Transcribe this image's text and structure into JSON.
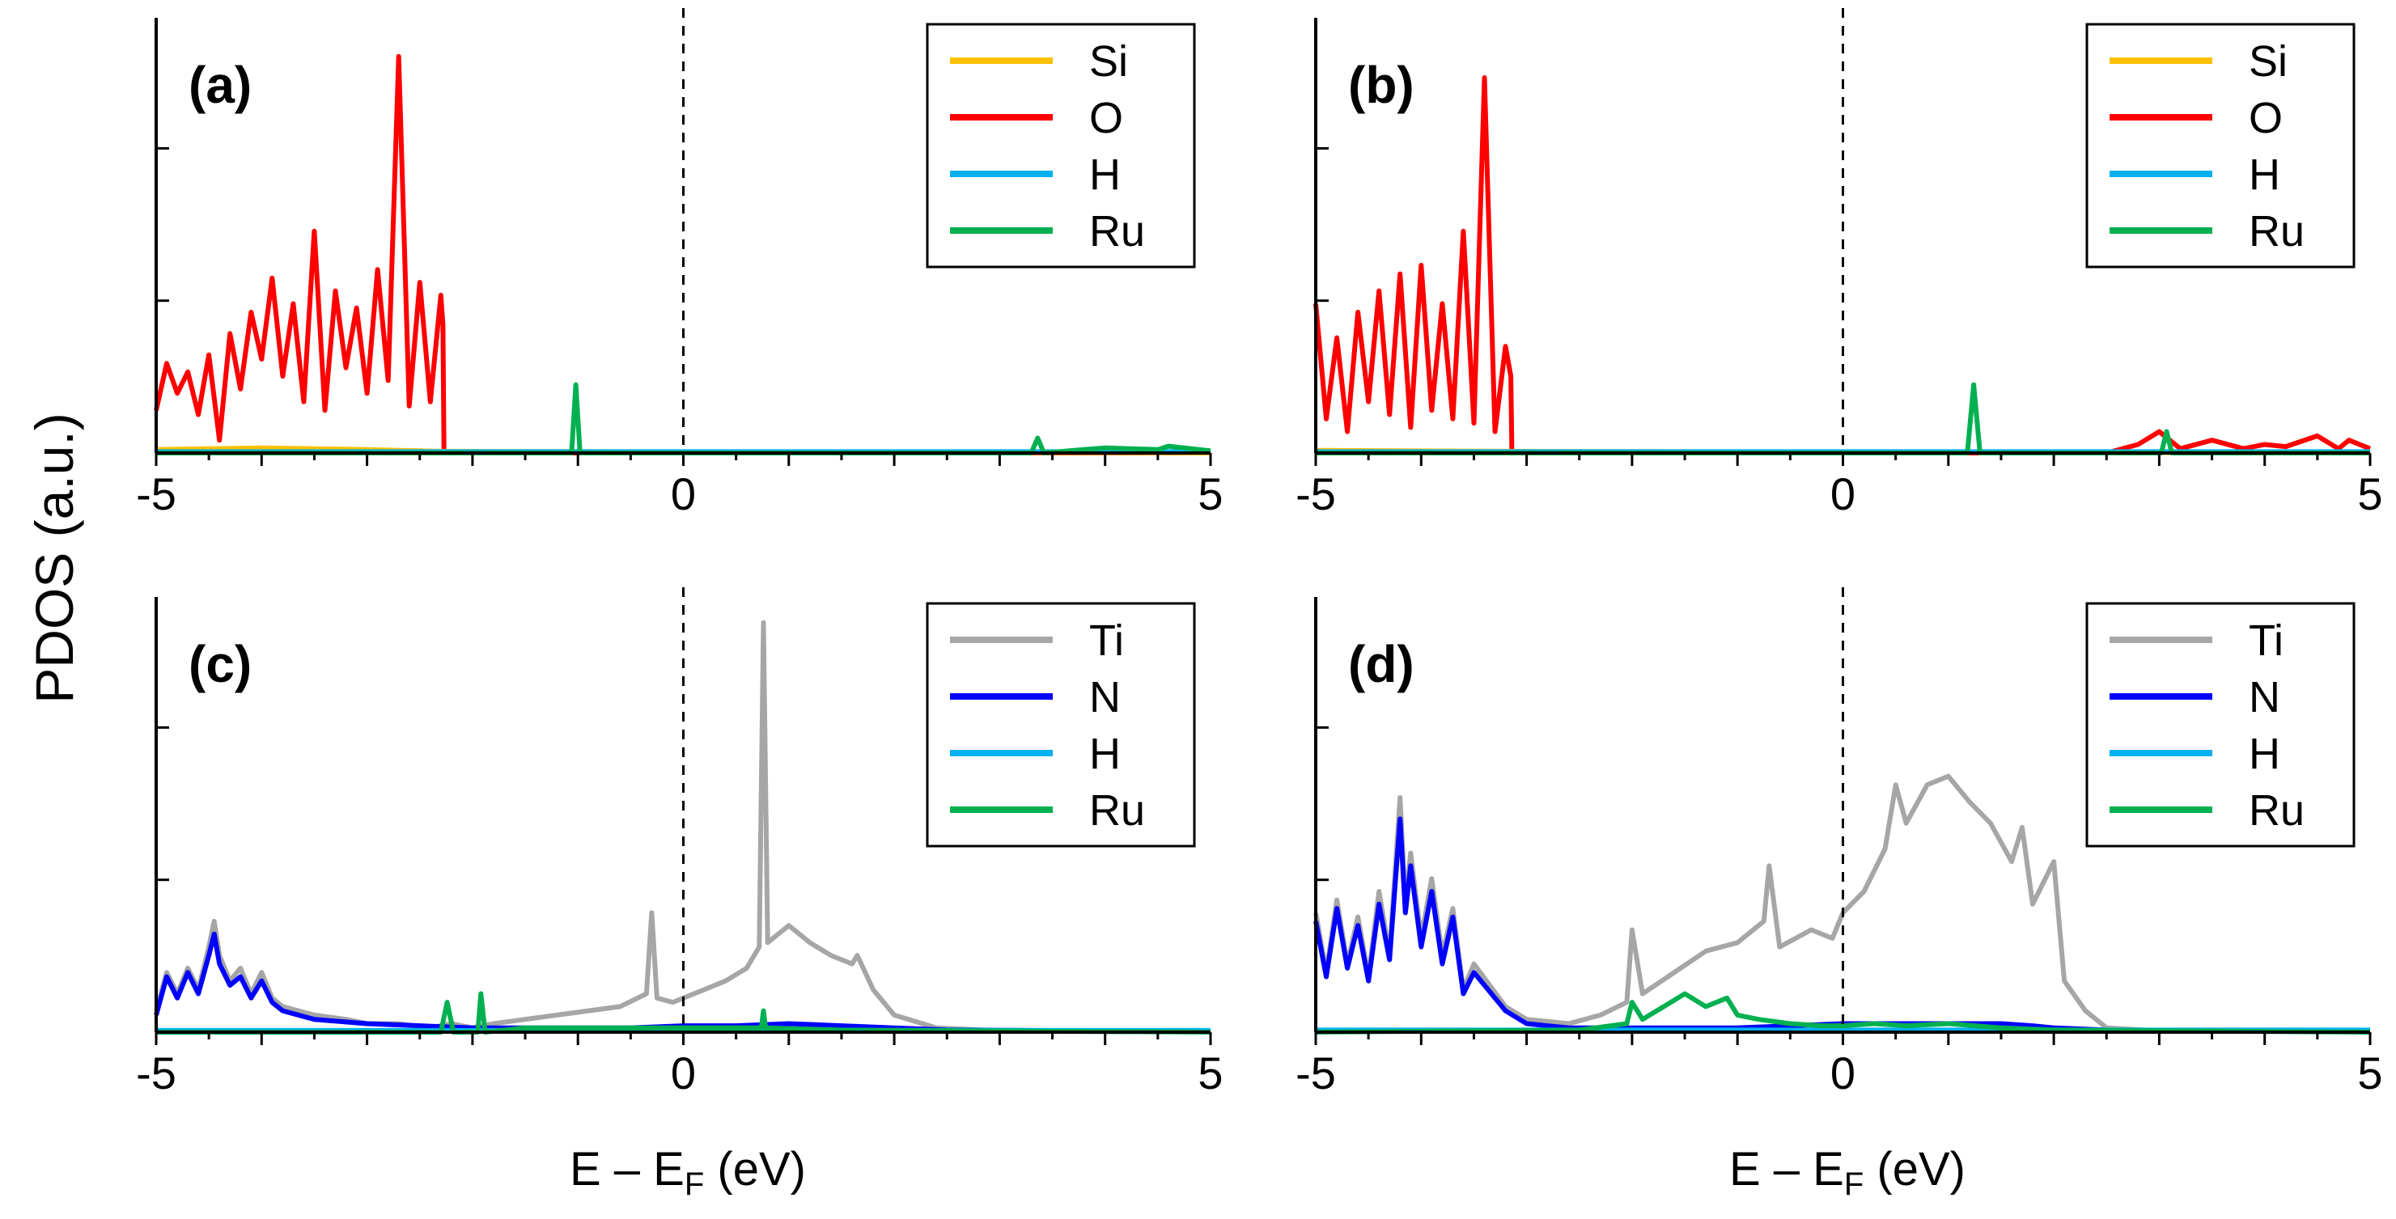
{
  "figure": {
    "ylabel": "PDOS (a.u.)",
    "xlabel_prefix": "E – E",
    "xlabel_sub": "F",
    "xlabel_suffix": " (eV)"
  },
  "colors": {
    "Si": "#FFC000",
    "O": "#FF0000",
    "H": "#00B0F0",
    "Ru": "#00B050",
    "Ti": "#A6A6A6",
    "N": "#0000FF",
    "fermi": "#000000",
    "axis": "#000000"
  },
  "chart_data": [
    {
      "type": "line",
      "panel_label": "(a)",
      "xlabel": "",
      "ylabel": "PDOS (a.u.)",
      "xlim": [
        -5,
        5
      ],
      "ylim": [
        0,
        1
      ],
      "xticks": [
        "-5",
        "0",
        "5"
      ],
      "legend": [
        "Si",
        "O",
        "H",
        "Ru"
      ],
      "legend_position": "top-right",
      "fermi_level": 0,
      "series": [
        {
          "name": "O",
          "x": [
            -5.0,
            -4.9,
            -4.8,
            -4.7,
            -4.6,
            -4.5,
            -4.4,
            -4.3,
            -4.2,
            -4.1,
            -4.0,
            -3.9,
            -3.8,
            -3.7,
            -3.6,
            -3.5,
            -3.4,
            -3.3,
            -3.2,
            -3.1,
            -3.0,
            -2.9,
            -2.8,
            -2.7,
            -2.6,
            -2.5,
            -2.4,
            -2.3,
            -2.28,
            -2.27,
            5.0
          ],
          "y": [
            0.1,
            0.21,
            0.14,
            0.19,
            0.09,
            0.23,
            0.03,
            0.28,
            0.15,
            0.33,
            0.22,
            0.41,
            0.18,
            0.35,
            0.12,
            0.52,
            0.1,
            0.38,
            0.2,
            0.34,
            0.14,
            0.43,
            0.17,
            0.93,
            0.11,
            0.4,
            0.12,
            0.37,
            0.3,
            0.0,
            0.0
          ]
        },
        {
          "name": "Si",
          "x": [
            -5.0,
            -4.0,
            -3.5,
            -3.0,
            -2.3,
            5.0
          ],
          "y": [
            0.008,
            0.012,
            0.01,
            0.008,
            0.004,
            0.0
          ]
        },
        {
          "name": "H",
          "x": [
            -5.0,
            5.0
          ],
          "y": [
            0.003,
            0.003
          ]
        },
        {
          "name": "Ru",
          "x": [
            -5.0,
            -1.06,
            -1.02,
            -0.98,
            -0.94,
            3.3,
            3.36,
            3.42,
            3.8,
            4.0,
            4.5,
            4.6,
            5.0
          ],
          "y": [
            0.0,
            0.0,
            0.16,
            0.0,
            0.0,
            0.0,
            0.035,
            0.0,
            0.008,
            0.012,
            0.008,
            0.016,
            0.005
          ]
        }
      ]
    },
    {
      "type": "line",
      "panel_label": "(b)",
      "xlabel": "",
      "ylabel": "",
      "xlim": [
        -5,
        5
      ],
      "ylim": [
        0,
        1
      ],
      "xticks": [
        "-5",
        "0",
        "5"
      ],
      "legend": [
        "Si",
        "O",
        "H",
        "Ru"
      ],
      "legend_position": "top-right",
      "fermi_level": 0,
      "series": [
        {
          "name": "O",
          "x": [
            -5.0,
            -4.9,
            -4.8,
            -4.7,
            -4.6,
            -4.5,
            -4.4,
            -4.3,
            -4.2,
            -4.1,
            -4.0,
            -3.9,
            -3.8,
            -3.7,
            -3.6,
            -3.5,
            -3.4,
            -3.3,
            -3.2,
            -3.15,
            -3.14,
            2.5,
            2.8,
            3.0,
            3.2,
            3.5,
            3.8,
            4.0,
            4.2,
            4.5,
            4.7,
            4.8,
            5.0
          ],
          "y": [
            0.35,
            0.08,
            0.27,
            0.05,
            0.33,
            0.12,
            0.38,
            0.09,
            0.42,
            0.06,
            0.44,
            0.1,
            0.35,
            0.08,
            0.52,
            0.07,
            0.88,
            0.05,
            0.25,
            0.18,
            0.0,
            0.0,
            0.02,
            0.05,
            0.01,
            0.03,
            0.01,
            0.02,
            0.015,
            0.04,
            0.01,
            0.03,
            0.01
          ]
        },
        {
          "name": "Si",
          "x": [
            -5.0,
            -3.15,
            5.0
          ],
          "y": [
            0.006,
            0.004,
            0.0
          ]
        },
        {
          "name": "H",
          "x": [
            -5.0,
            5.0
          ],
          "y": [
            0.003,
            0.003
          ]
        },
        {
          "name": "Ru",
          "x": [
            -5.0,
            1.18,
            1.24,
            1.3,
            3.02,
            3.07,
            3.12,
            5.0
          ],
          "y": [
            0.0,
            0.0,
            0.16,
            0.0,
            0.0,
            0.05,
            0.0,
            0.0
          ]
        }
      ]
    },
    {
      "type": "line",
      "panel_label": "(c)",
      "xlabel": "E – E_F (eV)",
      "ylabel": "PDOS (a.u.)",
      "xlim": [
        -5,
        5
      ],
      "ylim": [
        0,
        1
      ],
      "xticks": [
        "-5",
        "0",
        "5"
      ],
      "legend": [
        "Ti",
        "N",
        "H",
        "Ru"
      ],
      "legend_position": "top-right",
      "fermi_level": 0,
      "series": [
        {
          "name": "Ti",
          "x": [
            -5.0,
            -4.9,
            -4.8,
            -4.7,
            -4.6,
            -4.5,
            -4.45,
            -4.4,
            -4.3,
            -4.2,
            -4.1,
            -4.0,
            -3.9,
            -3.8,
            -3.5,
            -3.2,
            -3.0,
            -2.7,
            -2.4,
            -2.2,
            -2.0,
            -1.8,
            -1.5,
            -1.2,
            -0.9,
            -0.6,
            -0.35,
            -0.3,
            -0.25,
            -0.1,
            0.0,
            0.2,
            0.4,
            0.6,
            0.72,
            0.76,
            0.8,
            0.9,
            1.0,
            1.2,
            1.4,
            1.6,
            1.65,
            1.8,
            2.0,
            2.4,
            3.0,
            5.0
          ],
          "y": [
            0.05,
            0.14,
            0.09,
            0.15,
            0.1,
            0.2,
            0.26,
            0.18,
            0.12,
            0.15,
            0.09,
            0.14,
            0.08,
            0.06,
            0.04,
            0.03,
            0.02,
            0.02,
            0.01,
            0.02,
            0.01,
            0.02,
            0.03,
            0.04,
            0.05,
            0.06,
            0.09,
            0.28,
            0.08,
            0.07,
            0.08,
            0.1,
            0.12,
            0.15,
            0.2,
            0.96,
            0.21,
            0.23,
            0.25,
            0.21,
            0.18,
            0.16,
            0.18,
            0.1,
            0.04,
            0.01,
            0.003,
            0.002
          ]
        },
        {
          "name": "N",
          "x": [
            -5.0,
            -4.9,
            -4.8,
            -4.7,
            -4.6,
            -4.5,
            -4.45,
            -4.4,
            -4.3,
            -4.2,
            -4.1,
            -4.0,
            -3.9,
            -3.8,
            -3.5,
            -3.0,
            -2.5,
            -2.0,
            -1.5,
            -1.0,
            -0.5,
            0.0,
            0.5,
            1.0,
            1.5,
            2.0,
            2.5,
            5.0
          ],
          "y": [
            0.04,
            0.13,
            0.08,
            0.14,
            0.09,
            0.18,
            0.23,
            0.16,
            0.11,
            0.13,
            0.08,
            0.12,
            0.07,
            0.05,
            0.03,
            0.02,
            0.015,
            0.01,
            0.01,
            0.01,
            0.01,
            0.015,
            0.015,
            0.02,
            0.015,
            0.01,
            0.005,
            0.002
          ]
        },
        {
          "name": "H",
          "x": [
            -5.0,
            5.0
          ],
          "y": [
            0.004,
            0.004
          ]
        },
        {
          "name": "Ru",
          "x": [
            -5.0,
            -2.3,
            -2.24,
            -2.18,
            -1.95,
            -1.92,
            -1.88,
            -1.5,
            -1.0,
            0.0,
            0.74,
            0.76,
            0.78,
            1.5,
            5.0
          ],
          "y": [
            0.0,
            0.0,
            0.07,
            0.0,
            0.0,
            0.09,
            0.0,
            0.01,
            0.01,
            0.01,
            0.01,
            0.05,
            0.01,
            0.005,
            0.0
          ]
        }
      ]
    },
    {
      "type": "line",
      "panel_label": "(d)",
      "xlabel": "E – E_F (eV)",
      "ylabel": "",
      "xlim": [
        -5,
        5
      ],
      "ylim": [
        0,
        1
      ],
      "xticks": [
        "-5",
        "0",
        "5"
      ],
      "legend": [
        "Ti",
        "N",
        "H",
        "Ru"
      ],
      "legend_position": "top-right",
      "fermi_level": 0,
      "series": [
        {
          "name": "Ti",
          "x": [
            -5.0,
            -4.9,
            -4.8,
            -4.7,
            -4.6,
            -4.5,
            -4.4,
            -4.3,
            -4.2,
            -4.15,
            -4.1,
            -4.0,
            -3.9,
            -3.8,
            -3.7,
            -3.6,
            -3.5,
            -3.2,
            -3.0,
            -2.6,
            -2.3,
            -2.05,
            -2.0,
            -1.9,
            -1.6,
            -1.3,
            -1.0,
            -0.75,
            -0.7,
            -0.6,
            -0.3,
            -0.1,
            0.0,
            0.2,
            0.4,
            0.5,
            0.6,
            0.8,
            1.0,
            1.2,
            1.4,
            1.6,
            1.7,
            1.8,
            2.0,
            2.1,
            2.3,
            2.5,
            3.0,
            5.0
          ],
          "y": [
            0.28,
            0.14,
            0.31,
            0.16,
            0.27,
            0.13,
            0.33,
            0.18,
            0.55,
            0.3,
            0.42,
            0.22,
            0.36,
            0.18,
            0.29,
            0.1,
            0.16,
            0.06,
            0.03,
            0.02,
            0.04,
            0.07,
            0.24,
            0.09,
            0.14,
            0.19,
            0.21,
            0.26,
            0.39,
            0.2,
            0.24,
            0.22,
            0.28,
            0.33,
            0.43,
            0.58,
            0.49,
            0.58,
            0.6,
            0.54,
            0.49,
            0.4,
            0.48,
            0.3,
            0.4,
            0.12,
            0.05,
            0.01,
            0.003,
            0.002
          ]
        },
        {
          "name": "N",
          "x": [
            -5.0,
            -4.9,
            -4.8,
            -4.7,
            -4.6,
            -4.5,
            -4.4,
            -4.3,
            -4.2,
            -4.15,
            -4.1,
            -4.0,
            -3.9,
            -3.8,
            -3.7,
            -3.6,
            -3.5,
            -3.2,
            -3.0,
            -2.6,
            -2.3,
            -2.0,
            -1.5,
            -1.0,
            -0.5,
            0.0,
            0.5,
            1.0,
            1.5,
            1.8,
            2.0,
            2.5,
            5.0
          ],
          "y": [
            0.26,
            0.13,
            0.29,
            0.15,
            0.25,
            0.12,
            0.3,
            0.17,
            0.5,
            0.28,
            0.39,
            0.2,
            0.33,
            0.16,
            0.27,
            0.09,
            0.14,
            0.05,
            0.02,
            0.01,
            0.01,
            0.01,
            0.01,
            0.01,
            0.015,
            0.02,
            0.02,
            0.02,
            0.02,
            0.015,
            0.01,
            0.005,
            0.002
          ]
        },
        {
          "name": "H",
          "x": [
            -5.0,
            5.0
          ],
          "y": [
            0.005,
            0.005
          ]
        },
        {
          "name": "Ru",
          "x": [
            -5.0,
            -2.5,
            -2.05,
            -2.0,
            -1.9,
            -1.7,
            -1.5,
            -1.3,
            -1.1,
            -1.0,
            -0.8,
            -0.5,
            -0.2,
            0.0,
            0.3,
            0.6,
            1.0,
            1.5,
            2.0,
            5.0
          ],
          "y": [
            0.0,
            0.005,
            0.02,
            0.07,
            0.03,
            0.06,
            0.09,
            0.06,
            0.08,
            0.04,
            0.03,
            0.02,
            0.015,
            0.015,
            0.02,
            0.015,
            0.02,
            0.01,
            0.005,
            0.0
          ]
        }
      ]
    }
  ]
}
